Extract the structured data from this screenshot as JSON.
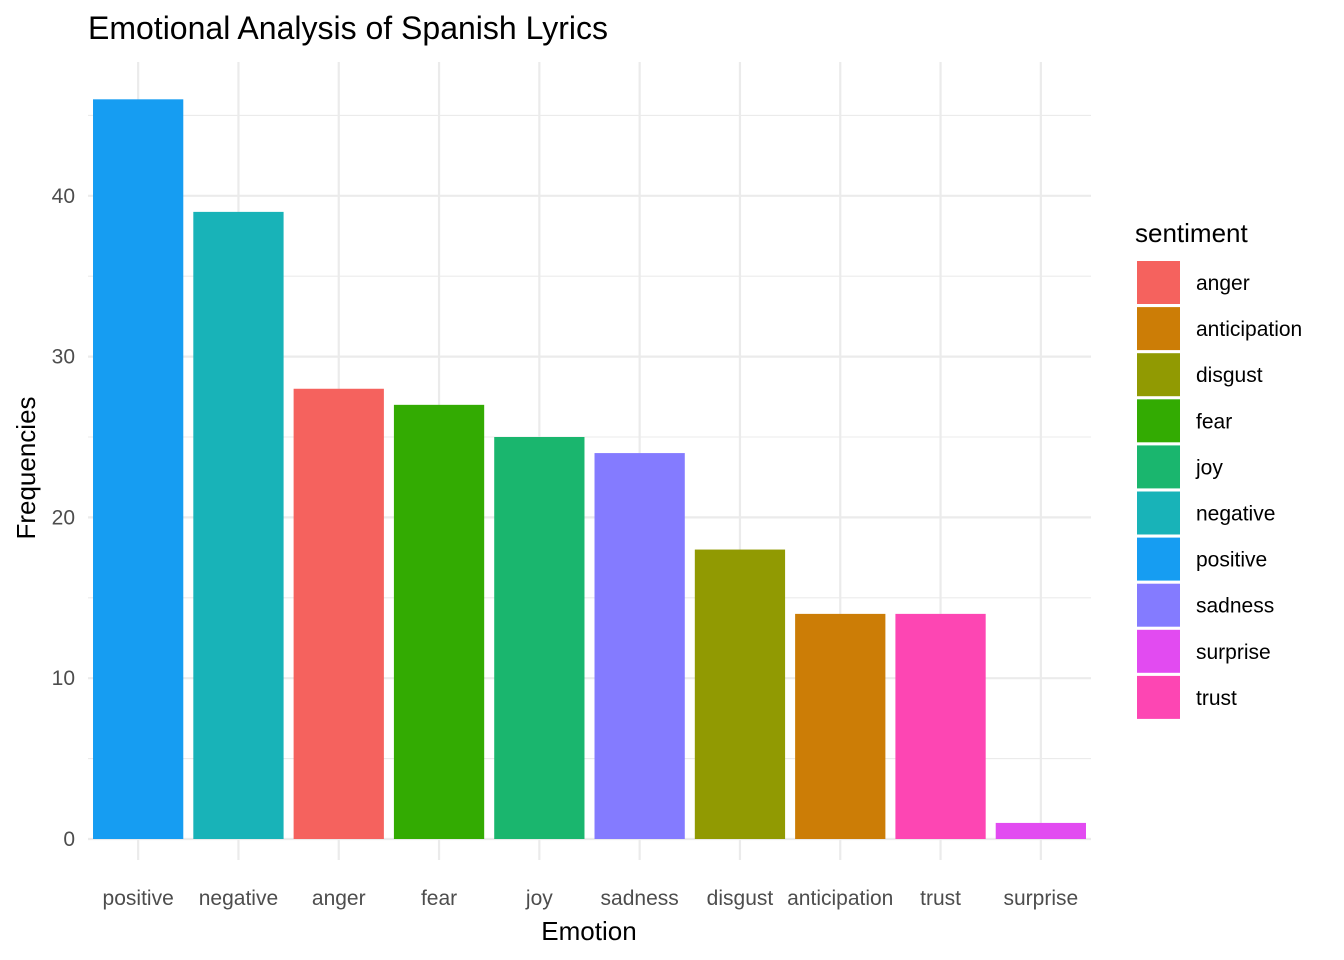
{
  "chart_data": {
    "type": "bar",
    "title": "Emotional Analysis of Spanish Lyrics",
    "xlabel": "Emotion",
    "ylabel": "Frequencies",
    "categories": [
      "positive",
      "negative",
      "anger",
      "fear",
      "joy",
      "sadness",
      "disgust",
      "anticipation",
      "trust",
      "surprise"
    ],
    "values": [
      46,
      39,
      28,
      27,
      25,
      24,
      18,
      14,
      14,
      1
    ],
    "ylim": [
      0,
      48
    ],
    "yticks": [
      "0",
      "10",
      "20",
      "30",
      "40"
    ],
    "grid": true,
    "legend": {
      "title": "sentiment",
      "placement": "right",
      "entries": [
        {
          "label": "anger",
          "color": "#F8766D"
        },
        {
          "label": "anticipation",
          "color": "#D39200"
        },
        {
          "label": "disgust",
          "color": "#93AA00"
        },
        {
          "label": "fear",
          "color": "#00BA38"
        },
        {
          "label": "joy",
          "color": "#00C19F"
        },
        {
          "label": "negative",
          "color": "#00B9E3"
        },
        {
          "label": "positive",
          "color": "#619CFF"
        },
        {
          "label": "sadness",
          "color": "#9590FF"
        },
        {
          "label": "surprise",
          "color": "#E76BF3"
        },
        {
          "label": "trust",
          "color": "#FF62BC"
        }
      ]
    },
    "colors": {
      "anger": "#F5625E",
      "anticipation": "#CC7D06",
      "disgust": "#919A02",
      "fear": "#33AB02",
      "joy": "#1AB66E",
      "negative": "#18B3B8",
      "positive": "#169DF2",
      "sadness": "#847BFF",
      "surprise": "#E24BF1",
      "trust": "#FD46B3"
    }
  }
}
